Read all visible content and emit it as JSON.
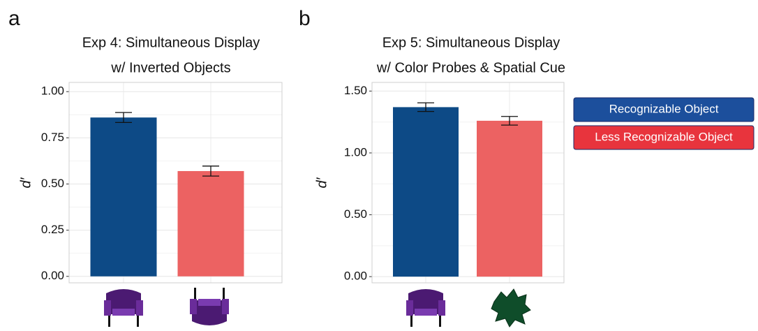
{
  "chart_data": [
    {
      "type": "bar",
      "panel_label": "a",
      "title": [
        "Exp 4: Simultaneous Display",
        "w/ Inverted Objects"
      ],
      "y_label": "d′",
      "values": [
        0.86,
        0.57
      ],
      "errors": [
        0.027,
        0.027
      ],
      "colors": [
        "#0d4a86",
        "#ec6262"
      ],
      "ylim": [
        -0.035,
        1.05
      ],
      "yticks": [
        {
          "value": 0,
          "label": "0.00"
        },
        {
          "value": 0.25,
          "label": "0.25"
        },
        {
          "value": 0.5,
          "label": "0.50"
        },
        {
          "value": 0.75,
          "label": "0.75"
        },
        {
          "value": 1,
          "label": "1.00"
        }
      ],
      "grid": true
    },
    {
      "type": "bar",
      "panel_label": "b",
      "title": [
        "Exp 5: Simultaneous Display",
        "w/ Color Probes & Spatial Cue"
      ],
      "y_label": "d′",
      "values": [
        1.37,
        1.26
      ],
      "errors": [
        0.035,
        0.035
      ],
      "colors": [
        "#0d4a86",
        "#ec6262"
      ],
      "ylim": [
        -0.05,
        1.57
      ],
      "yticks": [
        {
          "value": 0,
          "label": "0.00"
        },
        {
          "value": 0.5,
          "label": "0.50"
        },
        {
          "value": 1,
          "label": "1.00"
        },
        {
          "value": 1.5,
          "label": "1.50"
        }
      ],
      "grid": true
    }
  ],
  "legend": {
    "items": [
      {
        "name": "Recognizable Object",
        "color": "#1c4f9c"
      },
      {
        "name": "Less Recognizable Object",
        "color": "#e8343d"
      }
    ]
  }
}
